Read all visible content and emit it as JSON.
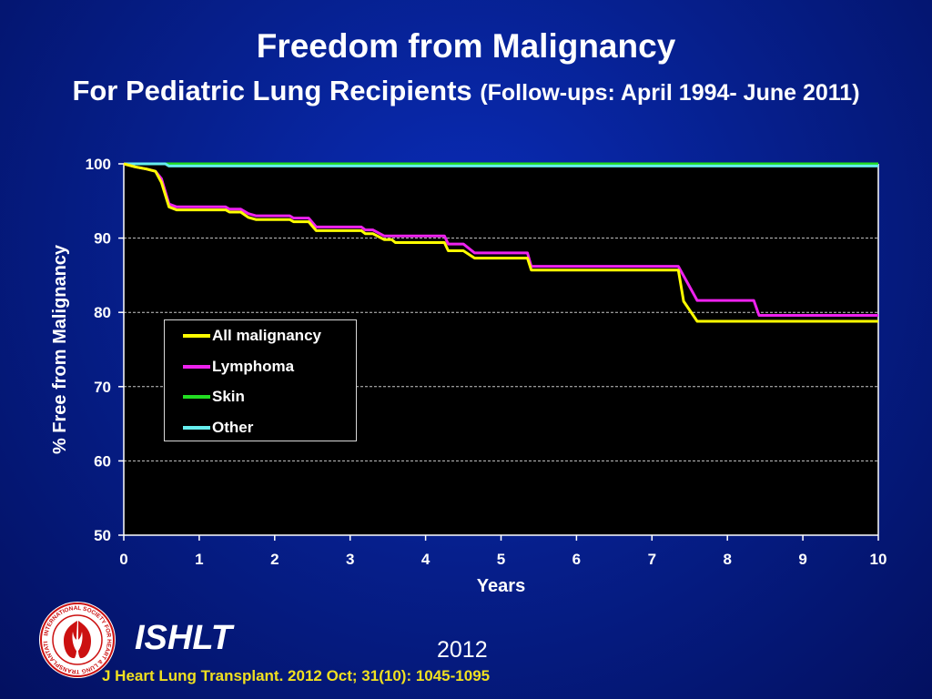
{
  "header": {
    "title": "Freedom from Malignancy",
    "subtitle_main": "For Pediatric Lung Recipients",
    "subtitle_detail": "(Follow-ups: April 1994- June 2011)"
  },
  "chart_data": {
    "type": "line",
    "title": "Freedom from Malignancy",
    "xlabel": "Years",
    "ylabel": "% Free from Malignancy",
    "xlim": [
      0,
      10
    ],
    "ylim": [
      50,
      100
    ],
    "xticks": [
      0,
      1,
      2,
      3,
      4,
      5,
      6,
      7,
      8,
      9,
      10
    ],
    "yticks": [
      50,
      60,
      70,
      80,
      90,
      100
    ],
    "grid": "horizontal dashed",
    "background": "#000000",
    "legend_position": "center-left",
    "series": [
      {
        "name": "Skin",
        "color": "#22dd22",
        "points": [
          [
            0,
            100
          ],
          [
            10,
            100
          ]
        ]
      },
      {
        "name": "Other",
        "color": "#66eeee",
        "points": [
          [
            0,
            100
          ],
          [
            0.55,
            100
          ],
          [
            0.6,
            99.7
          ],
          [
            10,
            99.7
          ]
        ]
      },
      {
        "name": "Lymphoma",
        "color": "#ee22ee",
        "points": [
          [
            0,
            100
          ],
          [
            0.15,
            99.6
          ],
          [
            0.3,
            99.3
          ],
          [
            0.42,
            99.0
          ],
          [
            0.5,
            98.0
          ],
          [
            0.6,
            94.6
          ],
          [
            0.7,
            94.2
          ],
          [
            1.35,
            94.2
          ],
          [
            1.4,
            93.9
          ],
          [
            1.55,
            93.9
          ],
          [
            1.65,
            93.3
          ],
          [
            1.75,
            93.0
          ],
          [
            2.2,
            93.0
          ],
          [
            2.25,
            92.7
          ],
          [
            2.45,
            92.7
          ],
          [
            2.55,
            91.5
          ],
          [
            3.15,
            91.5
          ],
          [
            3.2,
            91.1
          ],
          [
            3.3,
            91.1
          ],
          [
            3.45,
            90.3
          ],
          [
            4.25,
            90.3
          ],
          [
            4.3,
            89.2
          ],
          [
            4.5,
            89.2
          ],
          [
            4.65,
            88.0
          ],
          [
            5.35,
            88.0
          ],
          [
            5.4,
            86.2
          ],
          [
            7.35,
            86.2
          ],
          [
            7.6,
            81.6
          ],
          [
            8.35,
            81.6
          ],
          [
            8.42,
            79.6
          ],
          [
            10,
            79.6
          ]
        ]
      },
      {
        "name": "All malignancy",
        "color": "#ffff00",
        "points": [
          [
            0,
            100
          ],
          [
            0.15,
            99.6
          ],
          [
            0.3,
            99.3
          ],
          [
            0.42,
            99.0
          ],
          [
            0.5,
            97.5
          ],
          [
            0.6,
            94.2
          ],
          [
            0.7,
            93.8
          ],
          [
            1.35,
            93.8
          ],
          [
            1.4,
            93.5
          ],
          [
            1.55,
            93.5
          ],
          [
            1.65,
            92.8
          ],
          [
            1.75,
            92.5
          ],
          [
            2.2,
            92.5
          ],
          [
            2.25,
            92.2
          ],
          [
            2.45,
            92.2
          ],
          [
            2.55,
            91.0
          ],
          [
            3.15,
            91.0
          ],
          [
            3.2,
            90.6
          ],
          [
            3.3,
            90.6
          ],
          [
            3.45,
            89.8
          ],
          [
            3.55,
            89.8
          ],
          [
            3.6,
            89.4
          ],
          [
            4.25,
            89.4
          ],
          [
            4.3,
            88.3
          ],
          [
            4.5,
            88.3
          ],
          [
            4.65,
            87.3
          ],
          [
            5.35,
            87.3
          ],
          [
            5.4,
            85.7
          ],
          [
            7.35,
            85.7
          ],
          [
            7.42,
            81.5
          ],
          [
            7.6,
            78.8
          ],
          [
            10,
            78.8
          ]
        ]
      }
    ],
    "legend": [
      "All malignancy",
      "Lymphoma",
      "Skin",
      "Other"
    ]
  },
  "footer": {
    "brand": "ISHLT",
    "year": "2012",
    "citation": "J Heart Lung Transplant.  2012 Oct; 31(10): 1045-1095",
    "logo_ring_text": "INTERNATIONAL SOCIETY FOR HEART & LUNG TRANSPLANTATION"
  }
}
